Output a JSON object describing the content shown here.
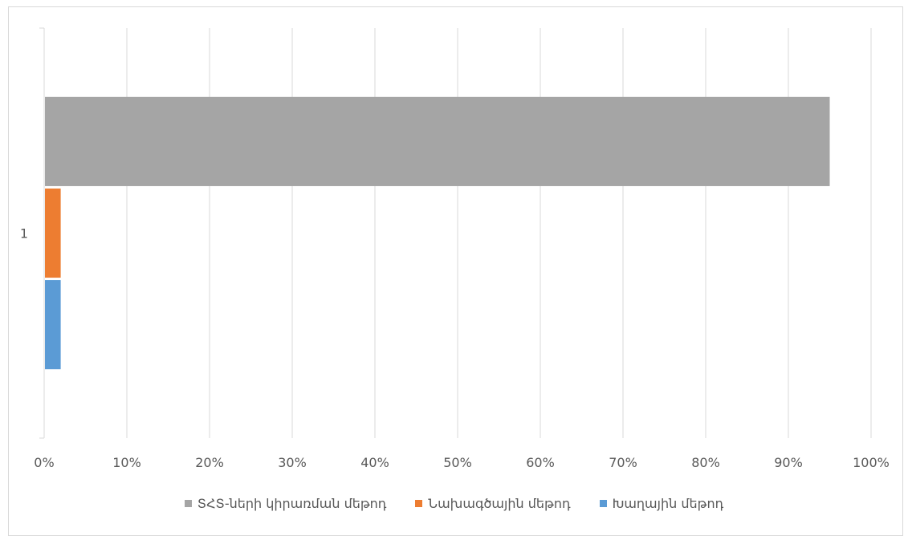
{
  "chart_data": {
    "type": "bar",
    "orientation": "horizontal",
    "stacked": false,
    "categories": [
      "1"
    ],
    "x_axis": {
      "min": 0,
      "max": 1.0,
      "tick_step": 0.1,
      "tick_labels": [
        "0%",
        "10%",
        "20%",
        "30%",
        "40%",
        "50%",
        "60%",
        "70%",
        "80%",
        "90%",
        "100%"
      ]
    },
    "grid": true,
    "legend_position": "bottom",
    "title": "",
    "xlabel": "",
    "ylabel": "",
    "series": [
      {
        "name": "ՏՀՏ-ների կիրառման մեթոդ",
        "color": "#a5a5a5",
        "values": [
          0.95
        ]
      },
      {
        "name": "Նախագծային մեթոդ",
        "color": "#ed7d31",
        "values": [
          0.02
        ]
      },
      {
        "name": "Խաղային մեթոդ",
        "color": "#5b9bd5",
        "values": [
          0.02
        ]
      }
    ]
  }
}
